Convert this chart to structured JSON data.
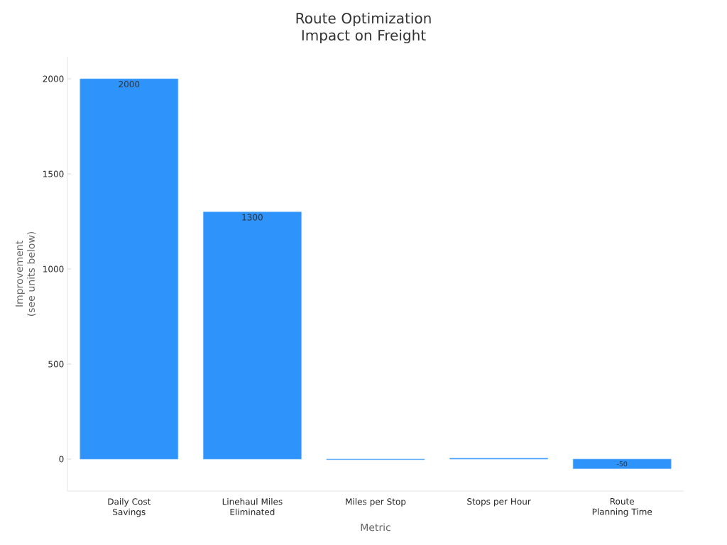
{
  "chart_data": {
    "type": "bar",
    "title": "Route Optimization Impact on Freight",
    "xlabel": "Metric",
    "ylabel": "Improvement (see units below)",
    "categories": [
      "Daily Cost Savings",
      "Linehaul Miles Eliminated",
      "Miles per Stop",
      "Stops per Hour",
      "Route Planning Time"
    ],
    "values": [
      2000,
      1300,
      -3,
      5,
      -50
    ],
    "value_labels": [
      "2000",
      "1300",
      null,
      null,
      "-50"
    ],
    "color": "#2e93fa",
    "ylim": [
      -168,
      2116
    ],
    "yticks": [
      0,
      500,
      1000,
      1500,
      2000
    ],
    "grid": false
  }
}
